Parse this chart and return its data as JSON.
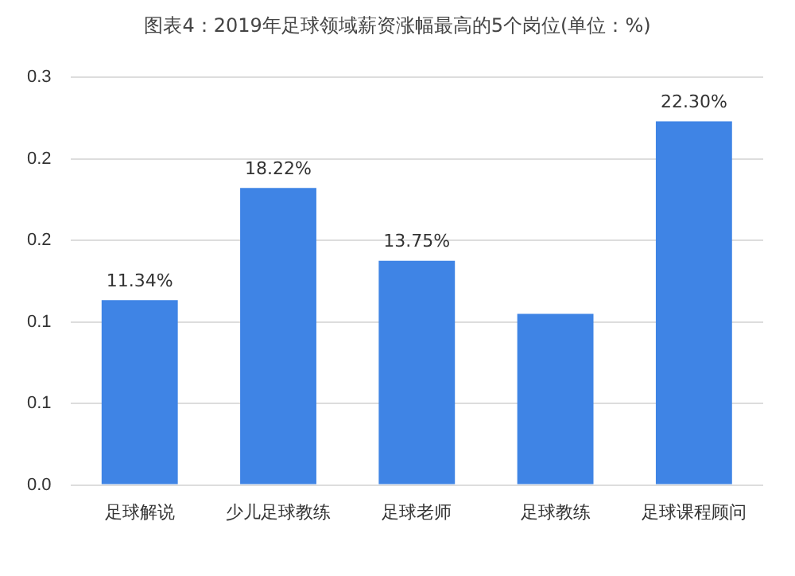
{
  "chart_data": {
    "type": "bar",
    "title": "图表4：2019年足球领域薪资涨幅最高的5个岗位(单位：%)",
    "categories": [
      "足球解说",
      "少儿足球教练",
      "足球老师",
      "足球教练",
      "足球课程顾问"
    ],
    "values": [
      0.1134,
      0.1822,
      0.1375,
      0.105,
      0.223
    ],
    "value_labels": [
      "11.34%",
      "18.22%",
      "13.75%",
      null,
      "22.30%"
    ],
    "color": "#3f84e5",
    "ylim": [
      0,
      0.25
    ],
    "yticks": [
      {
        "value": 0,
        "label": "0.0"
      },
      {
        "value": 0.05,
        "label": "0.1"
      },
      {
        "value": 0.1,
        "label": "0.1"
      },
      {
        "value": 0.15,
        "label": "0.2"
      },
      {
        "value": 0.2,
        "label": "0.2"
      },
      {
        "value": 0.25,
        "label": "0.3"
      }
    ],
    "grid": "y",
    "legend": false
  }
}
